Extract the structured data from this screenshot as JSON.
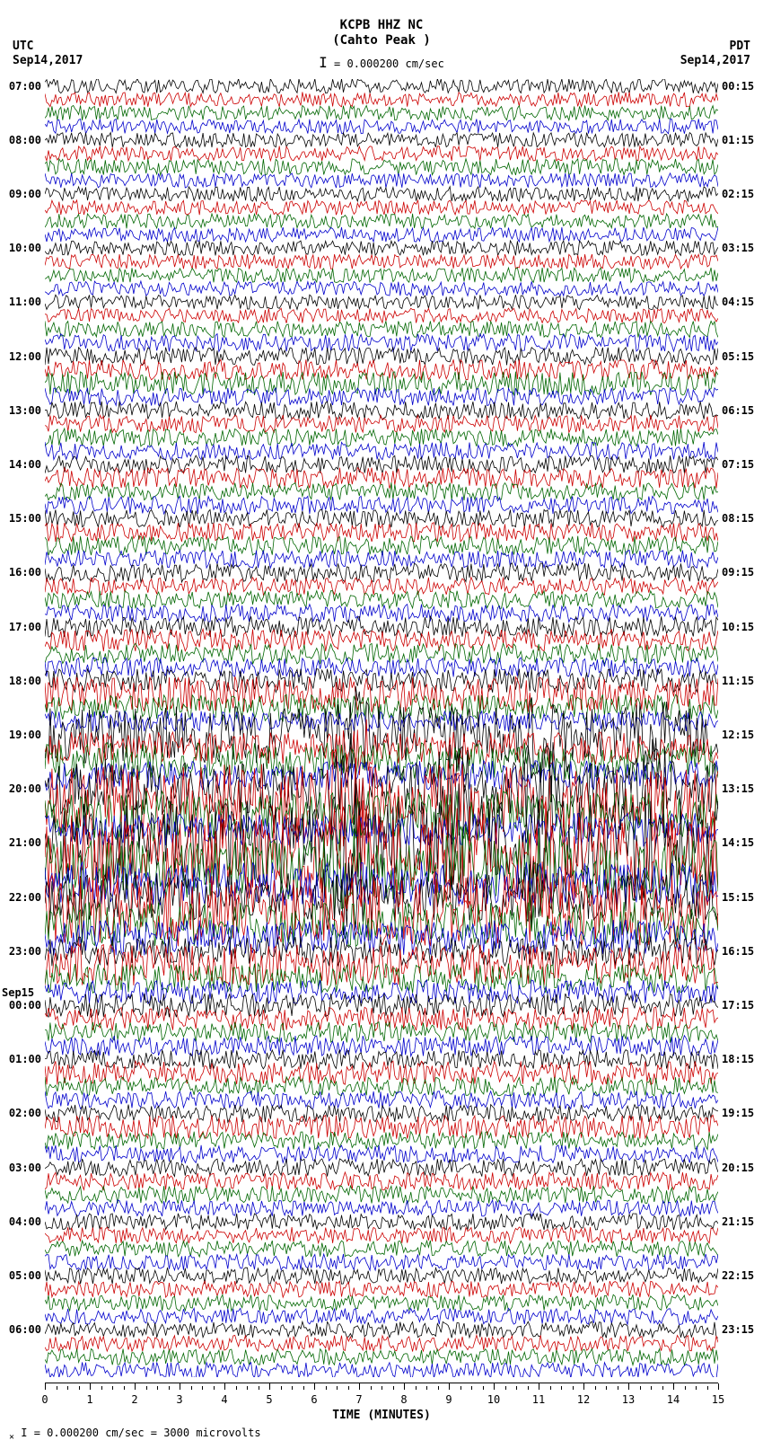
{
  "header": {
    "station": "KCPB HHZ NC",
    "location": "(Cahto Peak )",
    "scale_text": "= 0.000200 cm/sec",
    "tz_left": "UTC",
    "tz_right": "PDT",
    "date_left": "Sep14,2017",
    "date_right": "Sep14,2017"
  },
  "axes": {
    "x_label": "TIME (MINUTES)",
    "x_min": 0,
    "x_max": 15,
    "x_ticks": [
      0,
      1,
      2,
      3,
      4,
      5,
      6,
      7,
      8,
      9,
      10,
      11,
      12,
      13,
      14,
      15
    ],
    "minor_per_major": 4
  },
  "footer_text": "= 0.000200 cm/sec =   3000 microvolts",
  "helicorder": {
    "type": "helicorder",
    "lines_per_hour": 4,
    "hours": 24,
    "utc_hours": [
      "07:00",
      "08:00",
      "09:00",
      "10:00",
      "11:00",
      "12:00",
      "13:00",
      "14:00",
      "15:00",
      "16:00",
      "17:00",
      "18:00",
      "19:00",
      "20:00",
      "21:00",
      "22:00",
      "23:00",
      "00:00",
      "01:00",
      "02:00",
      "03:00",
      "04:00",
      "05:00",
      "06:00"
    ],
    "pdt_hours": [
      "00:15",
      "01:15",
      "02:15",
      "03:15",
      "04:15",
      "05:15",
      "06:15",
      "07:15",
      "08:15",
      "09:15",
      "10:15",
      "11:15",
      "12:15",
      "13:15",
      "14:15",
      "15:15",
      "16:15",
      "17:15",
      "18:15",
      "19:15",
      "20:15",
      "21:15",
      "22:15",
      "23:15"
    ],
    "sep15_index": 17,
    "sep15_label": "Sep15",
    "trace_colors": [
      "#000000",
      "#cc0000",
      "#006600",
      "#0000cc"
    ],
    "background_color": "#ffffff",
    "line_amplitudes": [
      1.0,
      1.0,
      1.0,
      1.0,
      1.0,
      1.0,
      1.1,
      1.0,
      1.0,
      1.0,
      1.0,
      1.0,
      1.0,
      1.0,
      1.0,
      1.0,
      1.0,
      1.0,
      1.1,
      1.2,
      1.2,
      1.4,
      1.6,
      1.2,
      1.2,
      1.2,
      1.2,
      1.2,
      1.2,
      1.4,
      1.2,
      1.2,
      1.2,
      1.3,
      1.3,
      1.2,
      1.3,
      1.2,
      1.2,
      1.2,
      1.4,
      1.5,
      1.4,
      1.3,
      1.6,
      2.4,
      1.8,
      1.4,
      3.8,
      2.2,
      2.6,
      2.0,
      3.6,
      5.2,
      3.4,
      2.2,
      5.8,
      5.6,
      4.2,
      3.0,
      3.2,
      4.8,
      3.0,
      2.4,
      2.0,
      2.8,
      2.0,
      1.6,
      1.6,
      1.6,
      1.4,
      1.4,
      1.3,
      1.6,
      1.3,
      1.2,
      1.2,
      1.6,
      1.2,
      1.2,
      1.2,
      1.2,
      1.2,
      1.1,
      1.1,
      1.1,
      1.1,
      1.1,
      1.1,
      1.1,
      1.1,
      1.1,
      1.1,
      1.1,
      1.1,
      1.1
    ],
    "event_bursts": [
      {
        "line": 52,
        "x": 0.07,
        "w": 0.04,
        "amp": 4.5
      },
      {
        "line": 53,
        "x": 0.07,
        "w": 0.04,
        "amp": 5.0
      },
      {
        "line": 54,
        "x": 0.07,
        "w": 0.03,
        "amp": 3.0
      },
      {
        "line": 60,
        "x": 0.06,
        "w": 0.04,
        "amp": 4.0
      },
      {
        "line": 61,
        "x": 0.06,
        "w": 0.04,
        "amp": 3.5
      },
      {
        "line": 48,
        "x": 0.4,
        "w": 0.1,
        "amp": 7.0
      },
      {
        "line": 49,
        "x": 0.4,
        "w": 0.1,
        "amp": 6.0
      },
      {
        "line": 52,
        "x": 0.38,
        "w": 0.12,
        "amp": 8.0
      },
      {
        "line": 53,
        "x": 0.38,
        "w": 0.12,
        "amp": 7.5
      },
      {
        "line": 56,
        "x": 0.38,
        "w": 0.14,
        "amp": 9.0
      },
      {
        "line": 57,
        "x": 0.38,
        "w": 0.14,
        "amp": 8.5
      },
      {
        "line": 58,
        "x": 0.38,
        "w": 0.12,
        "amp": 7.0
      },
      {
        "line": 60,
        "x": 0.38,
        "w": 0.12,
        "amp": 5.5
      },
      {
        "line": 61,
        "x": 0.38,
        "w": 0.1,
        "amp": 5.0
      },
      {
        "line": 52,
        "x": 0.55,
        "w": 0.12,
        "amp": 7.0
      },
      {
        "line": 53,
        "x": 0.55,
        "w": 0.12,
        "amp": 6.5
      },
      {
        "line": 56,
        "x": 0.55,
        "w": 0.14,
        "amp": 8.5
      },
      {
        "line": 57,
        "x": 0.55,
        "w": 0.14,
        "amp": 8.0
      },
      {
        "line": 58,
        "x": 0.55,
        "w": 0.12,
        "amp": 6.5
      },
      {
        "line": 48,
        "x": 0.68,
        "w": 0.1,
        "amp": 6.0
      },
      {
        "line": 52,
        "x": 0.68,
        "w": 0.12,
        "amp": 7.5
      },
      {
        "line": 56,
        "x": 0.68,
        "w": 0.14,
        "amp": 9.0
      },
      {
        "line": 57,
        "x": 0.68,
        "w": 0.14,
        "amp": 8.5
      },
      {
        "line": 58,
        "x": 0.68,
        "w": 0.12,
        "amp": 7.0
      },
      {
        "line": 60,
        "x": 0.68,
        "w": 0.1,
        "amp": 5.0
      },
      {
        "line": 48,
        "x": 0.85,
        "w": 0.1,
        "amp": 6.5
      },
      {
        "line": 52,
        "x": 0.85,
        "w": 0.1,
        "amp": 7.0
      },
      {
        "line": 53,
        "x": 0.85,
        "w": 0.1,
        "amp": 6.0
      },
      {
        "line": 56,
        "x": 0.83,
        "w": 0.12,
        "amp": 8.0
      },
      {
        "line": 57,
        "x": 0.83,
        "w": 0.12,
        "amp": 7.5
      }
    ],
    "noise_seed": 42
  }
}
